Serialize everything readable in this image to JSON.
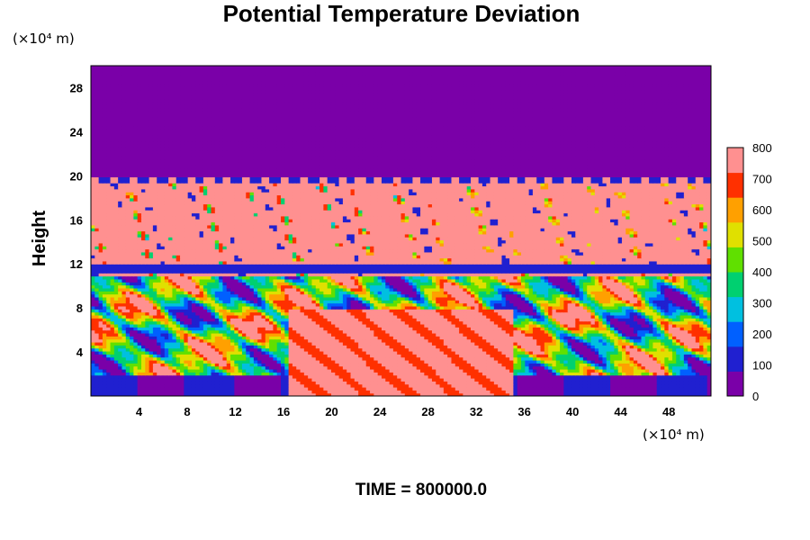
{
  "chart_data": {
    "type": "heatmap",
    "title": "Potential Temperature Deviation",
    "ylabel": "Height",
    "xlabel": "",
    "x_unit": "(×10⁴ m)",
    "y_unit": "(×10⁴ m)",
    "xlim": [
      0,
      51.5
    ],
    "ylim": [
      0,
      30
    ],
    "x_ticks": [
      "4",
      "8",
      "12",
      "16",
      "20",
      "24",
      "28",
      "32",
      "36",
      "40",
      "44",
      "48"
    ],
    "y_ticks": [
      "4",
      "8",
      "12",
      "16",
      "20",
      "24",
      "28"
    ],
    "colorbar": {
      "range": [
        0,
        800
      ],
      "ticks": [
        "0",
        "100",
        "200",
        "300",
        "400",
        "500",
        "600",
        "700",
        "800"
      ],
      "colors": [
        "#7a00a8",
        "#2020d0",
        "#0060ff",
        "#00c0e0",
        "#00d070",
        "#60e000",
        "#e0e000",
        "#ffa000",
        "#ff3000",
        "#ff9090"
      ]
    },
    "field_regions": {
      "upper_layer": {
        "y_from": 20,
        "y_to": 30,
        "value": 0
      },
      "middle_layer": {
        "y_from": 11,
        "y_to": 20,
        "value": 800
      },
      "lower_layer": {
        "y_from": 0,
        "y_to": 11,
        "value_range": [
          0,
          800
        ]
      }
    },
    "footer": "TIME = 800000.0"
  }
}
